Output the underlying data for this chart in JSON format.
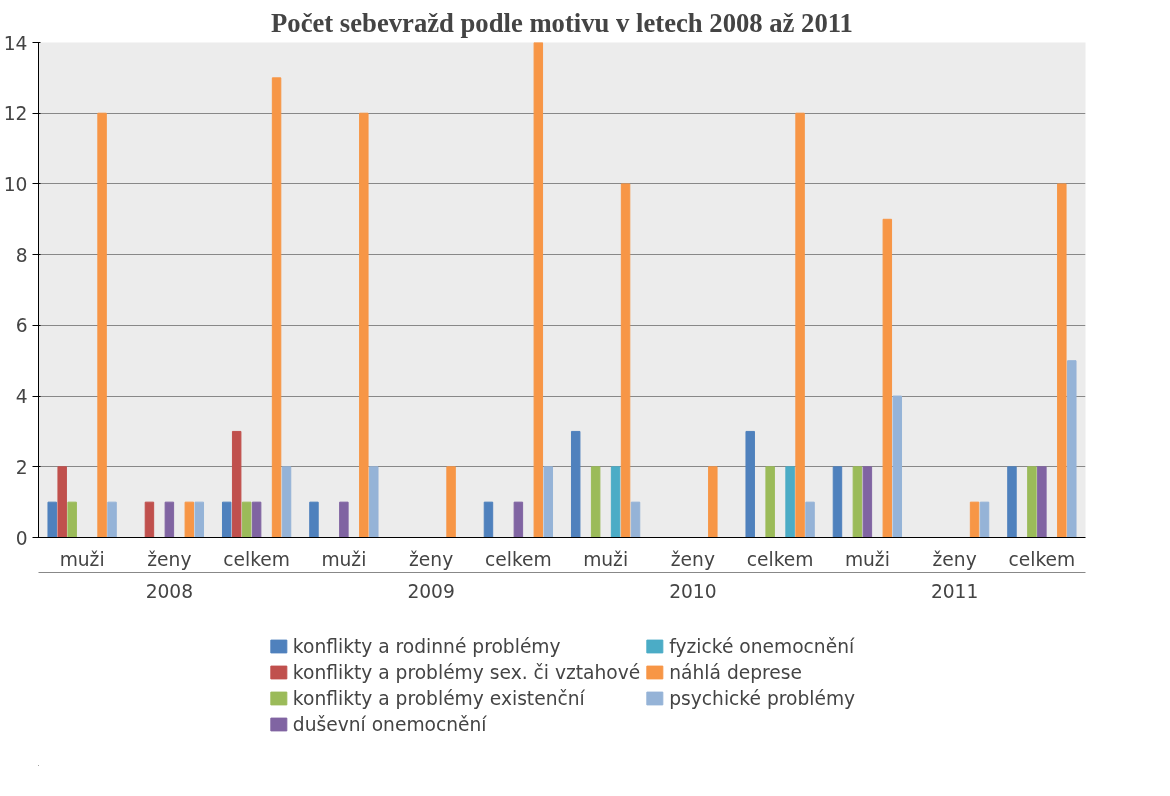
{
  "chart_data": {
    "type": "bar",
    "title": "Počet sebevražd podle motivu v letech 2008 až 2011",
    "categories": [
      "muži",
      "ženy",
      "celkem",
      "muži",
      "ženy",
      "celkem",
      "muži",
      "ženy",
      "celkem",
      "muži",
      "ženy",
      "celkem"
    ],
    "annotations": [
      "2008",
      "2009",
      "2010",
      "2011"
    ],
    "series": [
      {
        "name": "konflikty a rodinné problémy",
        "color": "#4f81bd",
        "values": [
          1,
          0,
          1,
          1,
          0,
          1,
          3,
          0,
          3,
          2,
          0,
          2
        ]
      },
      {
        "name": "konflikty a problémy sex. či vztahové",
        "color": "#c0504d",
        "values": [
          2,
          1,
          3,
          0,
          0,
          0,
          0,
          0,
          0,
          0,
          0,
          0
        ]
      },
      {
        "name": "konflikty a problémy existenční",
        "color": "#9bbb59",
        "values": [
          1,
          0,
          1,
          0,
          0,
          0,
          2,
          0,
          2,
          2,
          0,
          2
        ]
      },
      {
        "name": "duševní onemocnění",
        "color": "#8064a2",
        "values": [
          0,
          1,
          1,
          1,
          0,
          1,
          0,
          0,
          0,
          2,
          0,
          2
        ]
      },
      {
        "name": "fyzické onemocnění",
        "color": "#4bacc6",
        "values": [
          0,
          0,
          0,
          0,
          0,
          0,
          2,
          0,
          2,
          0,
          0,
          0
        ]
      },
      {
        "name": "náhlá deprese",
        "color": "#f79646",
        "values": [
          12,
          1,
          13,
          12,
          2,
          14,
          10,
          2,
          12,
          9,
          1,
          10
        ]
      },
      {
        "name": "psychické problémy",
        "color": "#95b3d7",
        "values": [
          1,
          1,
          2,
          2,
          0,
          2,
          1,
          0,
          1,
          4,
          1,
          5
        ]
      }
    ],
    "ylim": [
      0,
      14
    ],
    "yticks": [
      0,
      2,
      4,
      6,
      8,
      10,
      12,
      14
    ],
    "grid": "y",
    "legend": "bottom"
  }
}
